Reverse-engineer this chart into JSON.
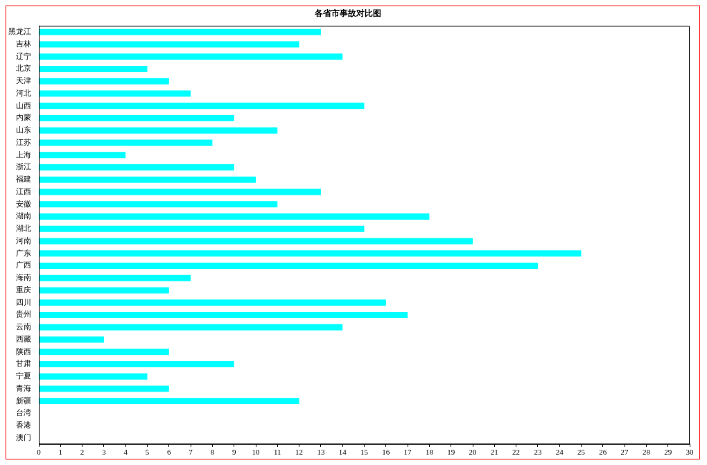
{
  "chart_data": {
    "type": "bar",
    "title": "各省市事故对比图",
    "orientation": "horizontal",
    "categories": [
      "黑龙江",
      "吉林",
      "辽宁",
      "北京",
      "天津",
      "河北",
      "山西",
      "内蒙",
      "山东",
      "江苏",
      "上海",
      "浙江",
      "福建",
      "江西",
      "安徽",
      "湖南",
      "湖北",
      "河南",
      "广东",
      "广西",
      "海南",
      "重庆",
      "四川",
      "贵州",
      "云南",
      "西藏",
      "陕西",
      "甘肃",
      "宁夏",
      "青海",
      "新疆",
      "台湾",
      "香港",
      "澳门"
    ],
    "values": [
      13,
      12,
      14,
      5,
      6,
      7,
      15,
      9,
      11,
      8,
      4,
      9,
      10,
      13,
      11,
      18,
      15,
      20,
      25,
      23,
      7,
      6,
      16,
      17,
      14,
      3,
      6,
      9,
      5,
      6,
      12,
      0,
      0,
      0
    ],
    "color": "#00ffff",
    "xlim": [
      0,
      30
    ],
    "xticks": [
      0,
      1,
      2,
      3,
      4,
      5,
      6,
      7,
      8,
      9,
      10,
      11,
      12,
      13,
      14,
      15,
      16,
      17,
      18,
      19,
      20,
      21,
      22,
      23,
      24,
      25,
      26,
      27,
      28,
      29,
      30
    ]
  }
}
